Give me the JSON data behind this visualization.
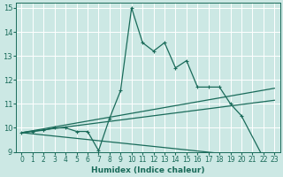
{
  "xlabel": "Humidex (Indice chaleur)",
  "bg_color": "#cce8e4",
  "grid_color": "#ffffff",
  "line_color": "#1a6b5a",
  "xlim": [
    -0.5,
    23.5
  ],
  "ylim": [
    9,
    15.2
  ],
  "yticks": [
    9,
    10,
    11,
    12,
    13,
    14,
    15
  ],
  "xticks": [
    0,
    1,
    2,
    3,
    4,
    5,
    6,
    7,
    8,
    9,
    10,
    11,
    12,
    13,
    14,
    15,
    16,
    17,
    18,
    19,
    20,
    21,
    22,
    23
  ],
  "main_line": {
    "x": [
      0,
      1,
      2,
      3,
      4,
      5,
      6,
      7,
      8,
      9,
      10,
      11,
      12,
      13,
      14,
      15,
      16,
      17,
      18,
      19,
      20,
      22
    ],
    "y": [
      9.8,
      9.85,
      9.9,
      10.0,
      10.0,
      9.85,
      9.85,
      9.05,
      10.4,
      11.55,
      15.0,
      13.55,
      13.2,
      13.55,
      12.5,
      12.8,
      11.7,
      11.7,
      11.7,
      11.0,
      10.5,
      8.75
    ]
  },
  "trend_lines": [
    {
      "x": [
        0,
        23
      ],
      "y": [
        9.8,
        11.65
      ]
    },
    {
      "x": [
        0,
        23
      ],
      "y": [
        9.8,
        11.15
      ]
    },
    {
      "x": [
        0,
        23
      ],
      "y": [
        9.8,
        8.7
      ]
    }
  ]
}
